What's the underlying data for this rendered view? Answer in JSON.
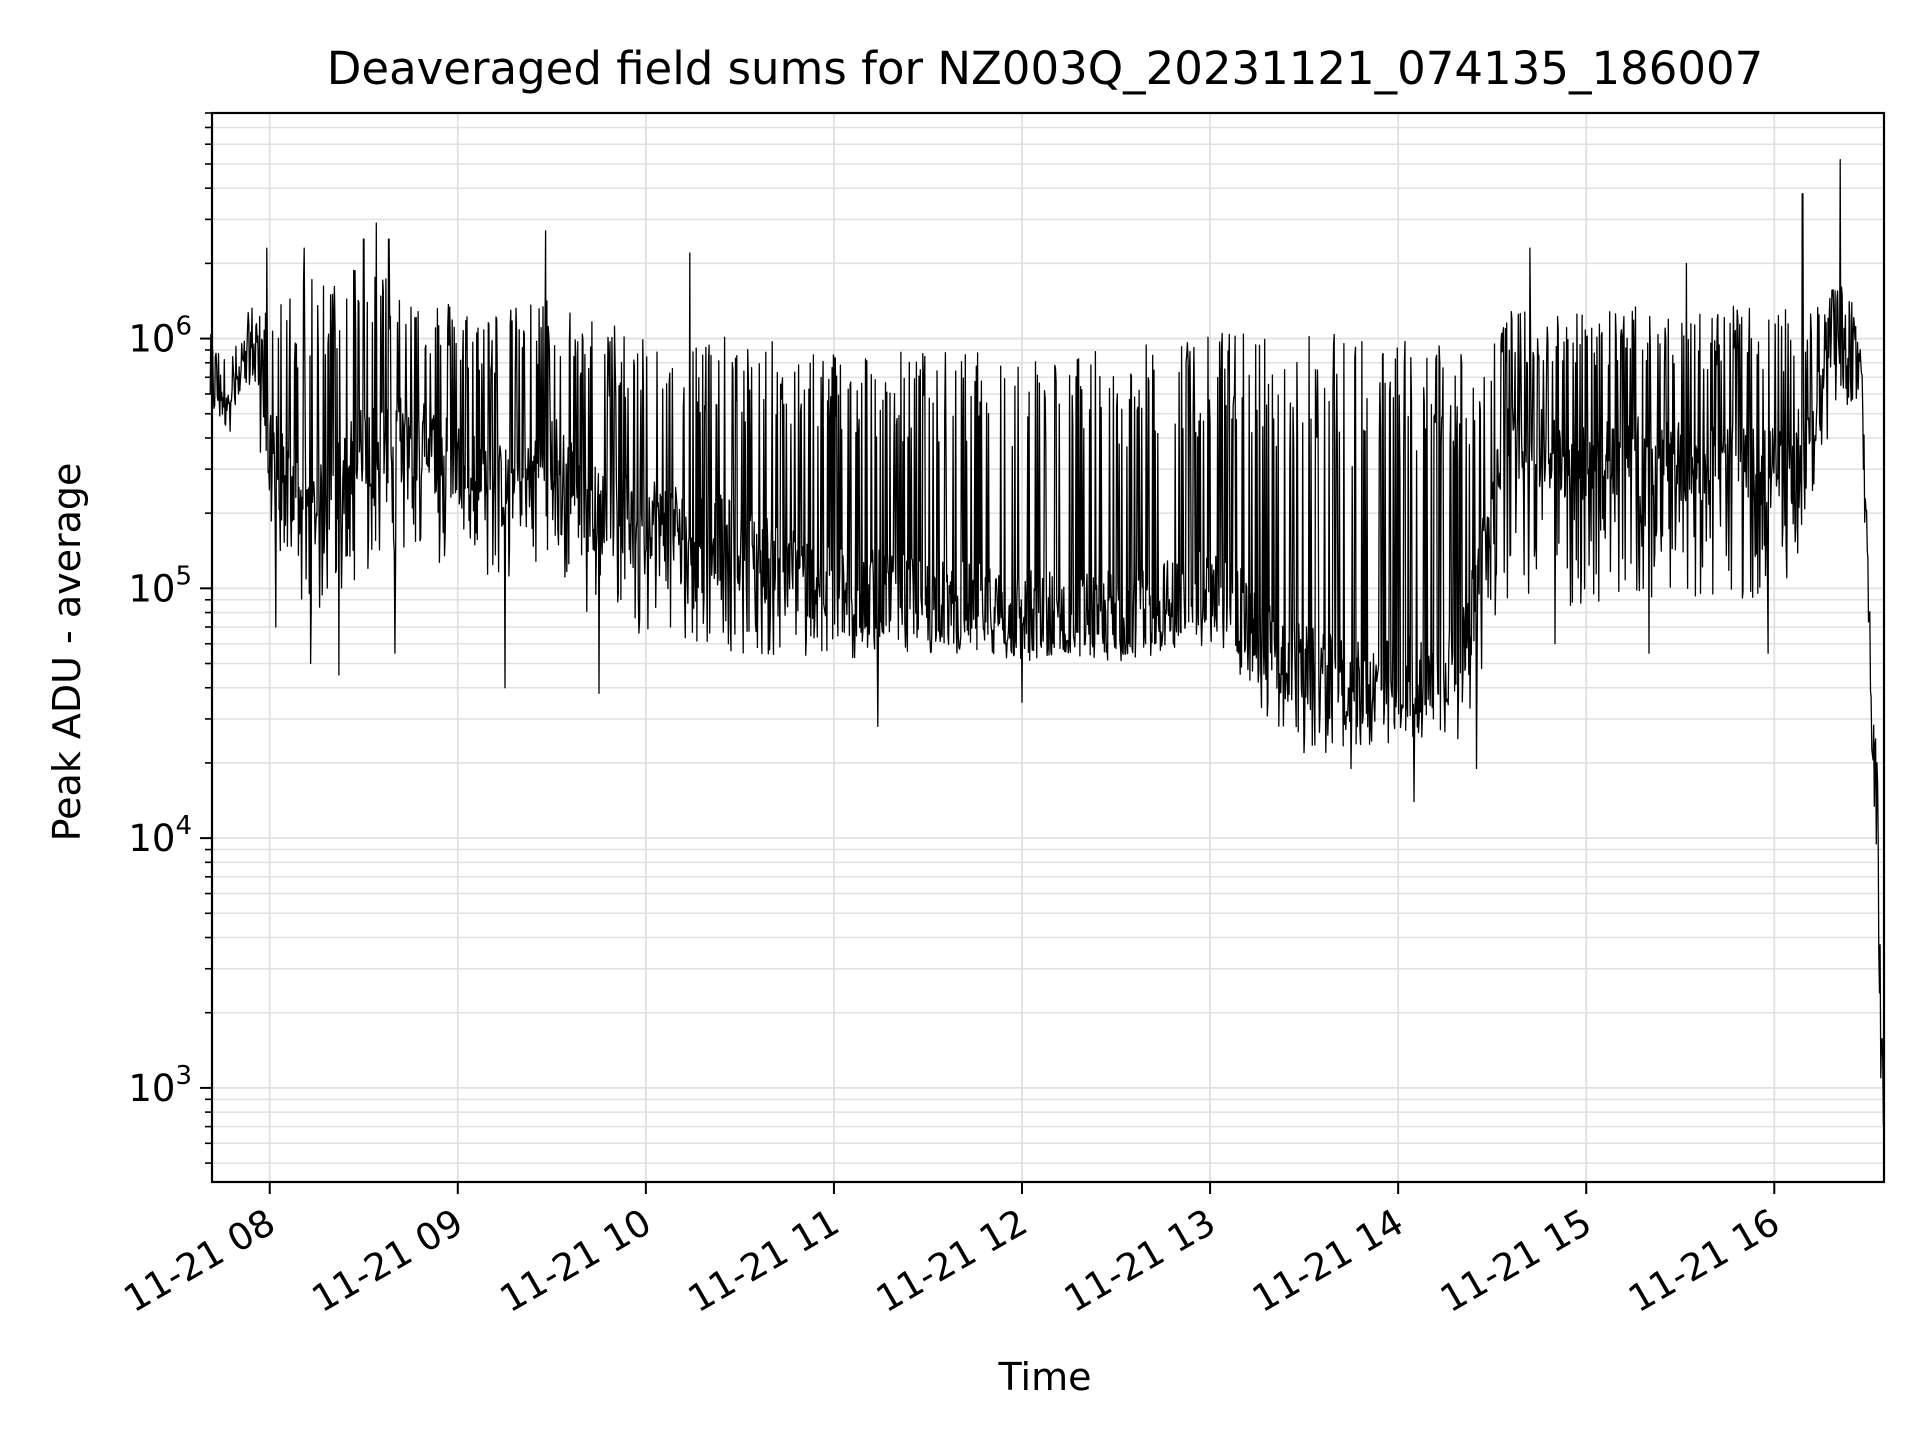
{
  "chart_data": {
    "type": "line",
    "title": "Deaveraged field sums for NZ003Q_20231121_074135_186007",
    "xlabel": "Time",
    "ylabel": "Peak ADU - average",
    "yscale": "log",
    "ylim": [
      420,
      8000000
    ],
    "xlim": [
      "2023-11-21 07:41:35",
      "2023-11-21 16:35:00"
    ],
    "grid": true,
    "line_color": "#000000",
    "grid_color": "#e0e0e0",
    "x_ticks": [
      {
        "t": "2023-11-21 08:00",
        "label": "11-21 08"
      },
      {
        "t": "2023-11-21 09:00",
        "label": "11-21 09"
      },
      {
        "t": "2023-11-21 10:00",
        "label": "11-21 10"
      },
      {
        "t": "2023-11-21 11:00",
        "label": "11-21 11"
      },
      {
        "t": "2023-11-21 12:00",
        "label": "11-21 12"
      },
      {
        "t": "2023-11-21 13:00",
        "label": "11-21 13"
      },
      {
        "t": "2023-11-21 14:00",
        "label": "11-21 14"
      },
      {
        "t": "2023-11-21 15:00",
        "label": "11-21 15"
      },
      {
        "t": "2023-11-21 16:00",
        "label": "11-21 16"
      }
    ],
    "y_ticks": [
      {
        "value": 1000,
        "base": "10",
        "exp": "3"
      },
      {
        "value": 10000,
        "base": "10",
        "exp": "4"
      },
      {
        "value": 100000,
        "base": "10",
        "exp": "5"
      },
      {
        "value": 1000000,
        "base": "10",
        "exp": "6"
      }
    ],
    "series": [
      {
        "x": [
          "2023-11-21 07:41",
          "2023-11-21 07:45",
          "2023-11-21 07:50",
          "2023-11-21 07:55",
          "2023-11-21 07:58",
          "2023-11-21 08:05",
          "2023-11-21 08:15",
          "2023-11-21 08:30",
          "2023-11-21 08:45",
          "2023-11-21 09:00",
          "2023-11-21 09:15",
          "2023-11-21 09:30",
          "2023-11-21 09:45",
          "2023-11-21 10:00",
          "2023-11-21 10:30",
          "2023-11-21 11:00",
          "2023-11-21 11:30",
          "2023-11-21 12:00",
          "2023-11-21 12:30",
          "2023-11-21 12:50",
          "2023-11-21 13:05",
          "2023-11-21 13:20",
          "2023-11-21 13:35",
          "2023-11-21 13:50",
          "2023-11-21 14:05",
          "2023-11-21 14:20",
          "2023-11-21 14:35",
          "2023-11-21 14:50",
          "2023-11-21 15:10",
          "2023-11-21 15:30",
          "2023-11-21 15:50",
          "2023-11-21 16:05",
          "2023-11-21 16:15",
          "2023-11-21 16:20",
          "2023-11-21 16:25",
          "2023-11-21 16:28",
          "2023-11-21 16:31",
          "2023-11-21 16:33",
          "2023-11-21 16:34",
          "2023-11-21 16:35"
        ],
        "y": [
          700000,
          620000,
          650000,
          1000000,
          550000,
          250000,
          200000,
          380000,
          400000,
          320000,
          250000,
          350000,
          200000,
          200000,
          150000,
          100000,
          90000,
          80000,
          80000,
          90000,
          100000,
          55000,
          45000,
          40000,
          45000,
          50000,
          400000,
          330000,
          350000,
          320000,
          300000,
          300000,
          600000,
          1200000,
          1000000,
          500000,
          35000,
          10000,
          1500,
          700
        ],
        "band_hi": [
          1000000,
          700000,
          700000,
          1200000,
          1300000,
          1500000,
          1800000,
          2200000,
          1600000,
          1400000,
          1300000,
          1500000,
          1200000,
          1100000,
          1000000,
          950000,
          900000,
          880000,
          900000,
          1000000,
          1100000,
          1050000,
          1050000,
          1050000,
          1000000,
          1000000,
          1300000,
          1300000,
          1350000,
          1350000,
          1350000,
          1300000,
          1500000,
          1600000,
          1500000,
          800000,
          40000,
          20000,
          2500,
          2600
        ],
        "band_lo": [
          550000,
          540000,
          560000,
          700000,
          250000,
          90000,
          80000,
          110000,
          120000,
          110000,
          100000,
          110000,
          70000,
          60000,
          55000,
          50000,
          55000,
          50000,
          50000,
          55000,
          55000,
          28000,
          22000,
          22000,
          24000,
          25000,
          90000,
          80000,
          90000,
          90000,
          90000,
          100000,
          300000,
          600000,
          500000,
          300000,
          25000,
          8000,
          900,
          650
        ],
        "spikes": [
          {
            "t": "2023-11-21 07:59",
            "y": 2300000
          },
          {
            "t": "2023-11-21 08:02",
            "y": 70000
          },
          {
            "t": "2023-11-21 08:11",
            "y": 2300000
          },
          {
            "t": "2023-11-21 08:13",
            "y": 50000
          },
          {
            "t": "2023-11-21 08:22",
            "y": 45000
          },
          {
            "t": "2023-11-21 08:30",
            "y": 2500000
          },
          {
            "t": "2023-11-21 08:34",
            "y": 2900000
          },
          {
            "t": "2023-11-21 08:38",
            "y": 2500000
          },
          {
            "t": "2023-11-21 08:40",
            "y": 55000
          },
          {
            "t": "2023-11-21 09:15",
            "y": 40000
          },
          {
            "t": "2023-11-21 09:28",
            "y": 2700000
          },
          {
            "t": "2023-11-21 09:45",
            "y": 38000
          },
          {
            "t": "2023-11-21 10:14",
            "y": 2200000
          },
          {
            "t": "2023-11-21 11:14",
            "y": 28000
          },
          {
            "t": "2023-11-21 12:00",
            "y": 35000
          },
          {
            "t": "2023-11-21 13:30",
            "y": 22000
          },
          {
            "t": "2023-11-21 13:45",
            "y": 19000
          },
          {
            "t": "2023-11-21 14:05",
            "y": 14000
          },
          {
            "t": "2023-11-21 14:25",
            "y": 19000
          },
          {
            "t": "2023-11-21 14:42",
            "y": 2300000
          },
          {
            "t": "2023-11-21 14:50",
            "y": 60000
          },
          {
            "t": "2023-11-21 15:20",
            "y": 55000
          },
          {
            "t": "2023-11-21 15:32",
            "y": 2000000
          },
          {
            "t": "2023-11-21 15:58",
            "y": 55000
          },
          {
            "t": "2023-11-21 16:09",
            "y": 3800000
          },
          {
            "t": "2023-11-21 16:21",
            "y": 5200000
          }
        ]
      }
    ]
  }
}
